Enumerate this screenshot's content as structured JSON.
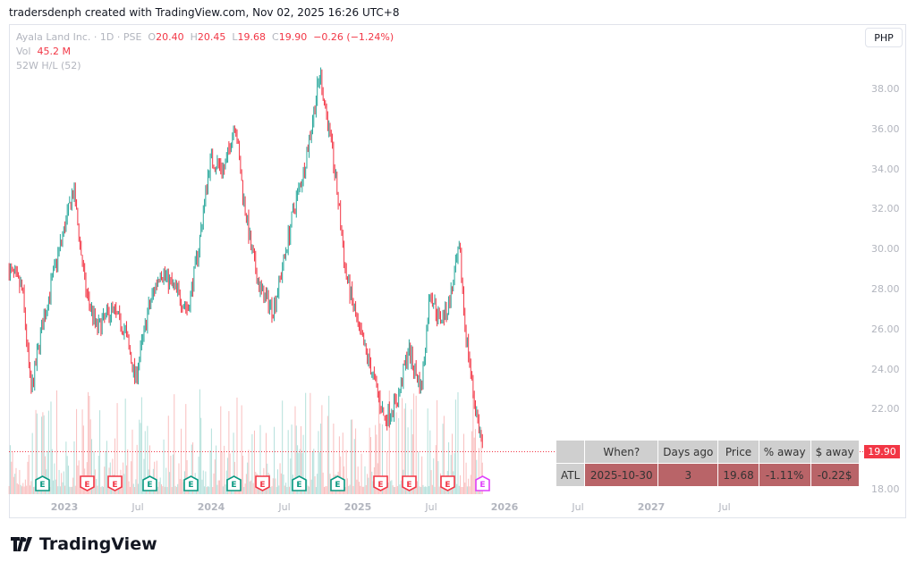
{
  "credit": "tradersdenph created with TradingView.com, Nov 02, 2025 16:26 UTC+8",
  "legend": {
    "symbol": "Ayala Land Inc. · 1D · PSE",
    "o_label": "O",
    "o": "20.40",
    "h_label": "H",
    "h": "20.45",
    "l_label": "L",
    "l": "19.68",
    "c_label": "C",
    "c": "19.90",
    "change": "−0.26 (−1.24%)",
    "vol_label": "Vol",
    "vol": "45.2 M",
    "indicator": "52W H/L (52)"
  },
  "currency_button": "PHP",
  "last_price_label": "19.90",
  "logo_text": "TradingView",
  "colors": {
    "up": "#26a69a",
    "down": "#f23645",
    "table_row": "#b96468",
    "table_header": "#cfcfcf"
  },
  "atl_table": {
    "headers": [
      "",
      "When?",
      "Days ago",
      "Price",
      "% away",
      "$ away"
    ],
    "row": [
      "ATL",
      "2025-10-30",
      "3",
      "19.68",
      "-1.11%",
      "-0.22$"
    ]
  },
  "earnings_markers": [
    {
      "label": "E",
      "type": "up",
      "year": 2022.85
    },
    {
      "label": "E",
      "type": "down",
      "year": 2023.15
    },
    {
      "label": "E",
      "type": "down",
      "year": 2023.34
    },
    {
      "label": "E",
      "type": "up",
      "year": 2023.58
    },
    {
      "label": "E",
      "type": "up",
      "year": 2023.86
    },
    {
      "label": "E",
      "type": "up",
      "year": 2024.15
    },
    {
      "label": "E",
      "type": "down",
      "year": 2024.35
    },
    {
      "label": "E",
      "type": "up",
      "year": 2024.6
    },
    {
      "label": "E",
      "type": "up",
      "year": 2024.86
    },
    {
      "label": "E",
      "type": "down",
      "year": 2025.15
    },
    {
      "label": "E",
      "type": "down",
      "year": 2025.35
    },
    {
      "label": "E",
      "type": "down",
      "year": 2025.61
    },
    {
      "label": "E",
      "type": "upcoming",
      "year": 2025.85
    }
  ],
  "chart_data": {
    "type": "candlestick",
    "title": "Ayala Land Inc. · 1D · PSE",
    "ylim": [
      17.6,
      39.6
    ],
    "y_ticks": [
      "38.00",
      "36.00",
      "34.00",
      "32.00",
      "30.00",
      "28.00",
      "26.00",
      "24.00",
      "22.00",
      "18.00"
    ],
    "y_tick_values": [
      38,
      36,
      34,
      32,
      30,
      28,
      26,
      24,
      22,
      18
    ],
    "x_ticks": [
      {
        "label": "2023",
        "year": 2023,
        "bold": true
      },
      {
        "label": "Jul",
        "year": 2023.5
      },
      {
        "label": "2024",
        "year": 2024,
        "bold": true
      },
      {
        "label": "Jul",
        "year": 2024.5
      },
      {
        "label": "2025",
        "year": 2025,
        "bold": true
      },
      {
        "label": "Jul",
        "year": 2025.5
      },
      {
        "label": "2026",
        "year": 2026,
        "bold": true
      },
      {
        "label": "Jul",
        "year": 2026.5
      },
      {
        "label": "2027",
        "year": 2027,
        "bold": true
      },
      {
        "label": "Jul",
        "year": 2027.5
      }
    ],
    "last_close": 19.9,
    "close_path": [
      [
        2022.62,
        29
      ],
      [
        2022.71,
        28
      ],
      [
        2022.77,
        22.8
      ],
      [
        2022.84,
        26
      ],
      [
        2022.93,
        29
      ],
      [
        2023.06,
        33
      ],
      [
        2023.14,
        28
      ],
      [
        2023.22,
        26
      ],
      [
        2023.32,
        27
      ],
      [
        2023.41,
        26
      ],
      [
        2023.48,
        23.5
      ],
      [
        2023.57,
        27
      ],
      [
        2023.65,
        29
      ],
      [
        2023.75,
        28
      ],
      [
        2023.84,
        27
      ],
      [
        2023.91,
        30
      ],
      [
        2023.99,
        34.5
      ],
      [
        2024.09,
        34
      ],
      [
        2024.16,
        36.5
      ],
      [
        2024.21,
        33
      ],
      [
        2024.27,
        30
      ],
      [
        2024.33,
        28
      ],
      [
        2024.42,
        27
      ],
      [
        2024.48,
        29
      ],
      [
        2024.56,
        32
      ],
      [
        2024.63,
        34
      ],
      [
        2024.7,
        37
      ],
      [
        2024.74,
        38.8
      ],
      [
        2024.82,
        35
      ],
      [
        2024.87,
        32
      ],
      [
        2024.91,
        29
      ],
      [
        2025.0,
        26
      ],
      [
        2025.09,
        24
      ],
      [
        2025.18,
        21.5
      ],
      [
        2025.27,
        22.5
      ],
      [
        2025.34,
        25
      ],
      [
        2025.43,
        23
      ],
      [
        2025.49,
        28
      ],
      [
        2025.55,
        26.5
      ],
      [
        2025.61,
        27
      ],
      [
        2025.69,
        30
      ],
      [
        2025.73,
        26
      ],
      [
        2025.79,
        22.5
      ],
      [
        2025.85,
        19.9
      ]
    ]
  }
}
